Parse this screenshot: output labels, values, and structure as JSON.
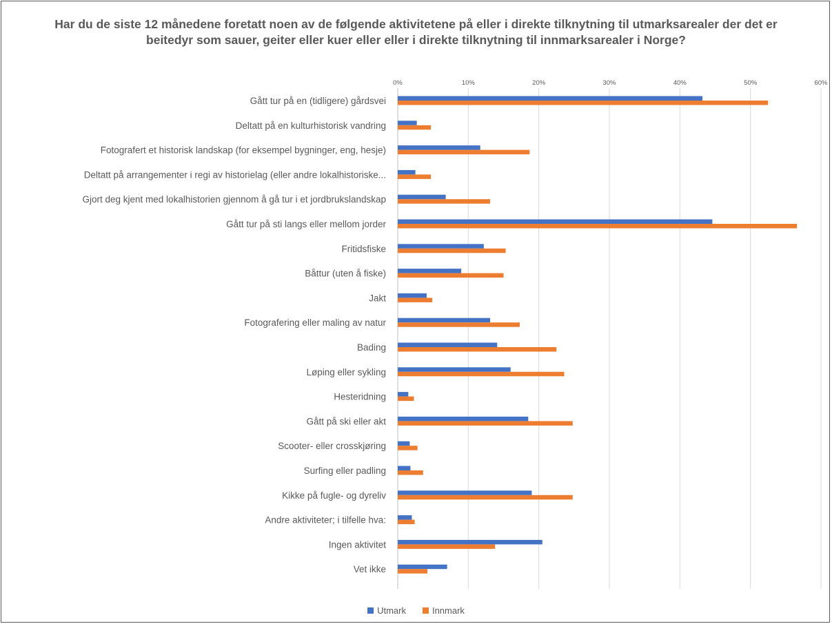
{
  "chart_data": {
    "type": "bar",
    "orientation": "horizontal",
    "title": "Har du de siste 12 månedene foretatt noen av de følgende aktivitetene på eller i direkte tilknytning til utmarksarealer der det er beitedyr som sauer, geiter eller kuer  eller eller i direkte tilknytning til innmarksarealer i Norge?",
    "categories": [
      "Gått tur på en (tidligere) gårdsvei",
      "Deltatt på en kulturhistorisk vandring",
      "Fotografert et historisk landskap (for eksempel bygninger, eng, hesje)",
      "Deltatt på arrangementer i regi av historielag (eller andre lokalhistoriske...",
      "Gjort deg kjent med lokalhistorien gjennom å gå tur i et jordbrukslandskap",
      "Gått tur på sti langs eller mellom jorder",
      "Fritidsfiske",
      "Båttur (uten å fiske)",
      "Jakt",
      "Fotografering eller maling av natur",
      "Bading",
      "Løping eller sykling",
      "Hesteridning",
      "Gått på ski eller akt",
      "Scooter- eller crosskjøring",
      "Surfing eller padling",
      "Kikke på fugle- og dyreliv",
      "Andre aktiviteter; i tilfelle hva:",
      "Ingen aktivitet",
      "Vet ikke"
    ],
    "series": [
      {
        "name": "Utmark",
        "color": "#4472C4",
        "values": [
          43.2,
          2.7,
          11.7,
          2.5,
          6.8,
          44.6,
          12.2,
          9.0,
          4.1,
          13.1,
          14.1,
          16.0,
          1.5,
          18.5,
          1.7,
          1.8,
          19.0,
          2.0,
          20.5,
          7.0
        ]
      },
      {
        "name": "Innmark",
        "color": "#ED7D31",
        "values": [
          52.5,
          4.7,
          18.7,
          4.7,
          13.1,
          56.6,
          15.3,
          15.0,
          4.9,
          17.3,
          22.5,
          23.6,
          2.3,
          24.8,
          2.8,
          3.6,
          24.8,
          2.4,
          13.8,
          4.2
        ]
      }
    ],
    "x_ticks": [
      "0%",
      "10%",
      "20%",
      "30%",
      "40%",
      "50%",
      "60%"
    ],
    "xlim": [
      0,
      60
    ],
    "grid": true,
    "legend_position": "bottom",
    "gridline_color": "#d9d9d9",
    "axis_line_color": "#bfbfbf",
    "text_color": "#595959"
  }
}
